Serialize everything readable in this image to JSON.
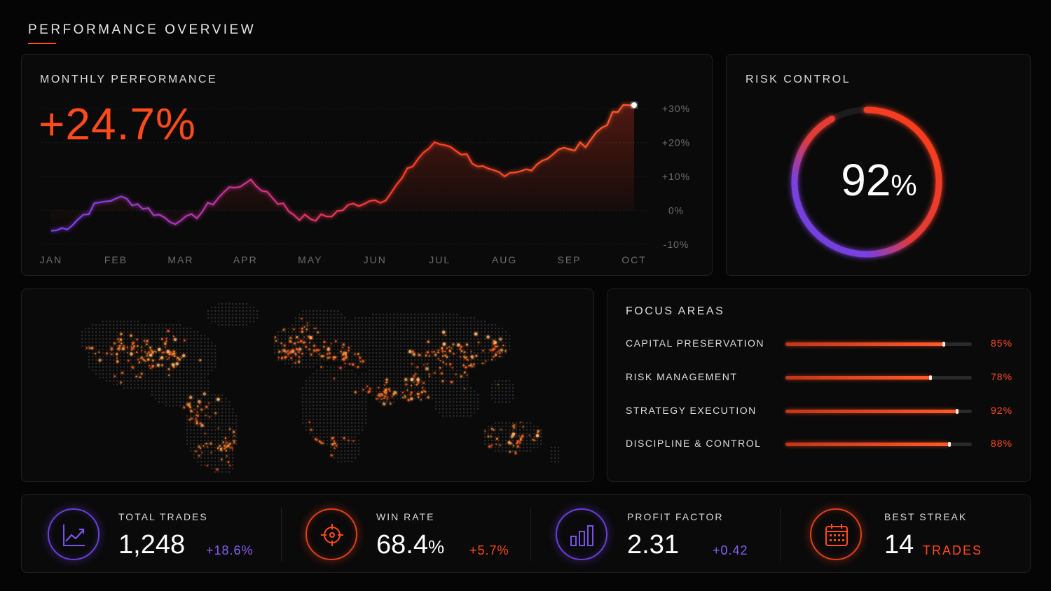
{
  "page": {
    "title": "PERFORMANCE OVERVIEW"
  },
  "colors": {
    "accent": "#ff4a1c",
    "violet": "#6a3fd8",
    "background": "#050505"
  },
  "monthly_performance": {
    "label": "MONTHLY PERFORMANCE",
    "headline": "+24.7%"
  },
  "chart_data": {
    "type": "line",
    "title": "",
    "x": [
      "JAN",
      "FEB",
      "MAR",
      "APR",
      "MAY",
      "JUN",
      "JUL",
      "AUG",
      "SEP",
      "OCT"
    ],
    "y_ticks": [
      "+30%",
      "+20%",
      "+10%",
      "0%",
      "-10%"
    ],
    "ylim": [
      -10,
      30
    ],
    "series": [
      {
        "values": [
          -6,
          3.5,
          -3,
          8,
          -2.5,
          3,
          19.5,
          10,
          18,
          31
        ]
      }
    ],
    "grid": true,
    "legend": "none"
  },
  "risk_control": {
    "label": "RISK CONTROL",
    "value": "92",
    "unit": "%",
    "fraction": 0.92
  },
  "map": {
    "icon": "world-map"
  },
  "focus_areas": {
    "label": "FOCUS AREAS",
    "items": [
      {
        "label": "CAPITAL PRESERVATION",
        "pct": "85%",
        "value": 0.85
      },
      {
        "label": "RISK MANAGEMENT",
        "pct": "78%",
        "value": 0.78
      },
      {
        "label": "STRATEGY EXECUTION",
        "pct": "92%",
        "value": 0.92
      },
      {
        "label": "DISCIPLINE & CONTROL",
        "pct": "88%",
        "value": 0.88
      }
    ]
  },
  "stats": [
    {
      "label": "TOTAL TRADES",
      "value": "1,248",
      "unit": "",
      "delta": "+18.6%",
      "icon": "trend-up-icon"
    },
    {
      "label": "WIN RATE",
      "value": "68.4",
      "unit": "%",
      "delta": "+5.7%",
      "icon": "target-icon"
    },
    {
      "label": "PROFIT FACTOR",
      "value": "2.31",
      "unit": "",
      "delta": "+0.42",
      "icon": "bar-chart-icon"
    },
    {
      "label": "BEST STREAK",
      "value": "14",
      "unit": "",
      "delta": "TRADES",
      "icon": "calendar-icon"
    }
  ]
}
